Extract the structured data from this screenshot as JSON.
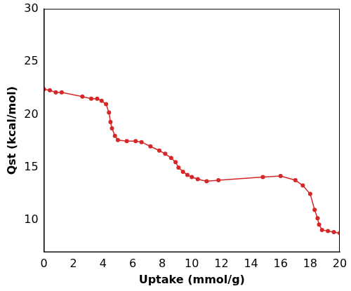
{
  "chart_data": {
    "type": "line",
    "x_label": "Uptake (mmol/g)",
    "y_label": "Qst (kcal/mol)",
    "x": [
      0,
      0.4,
      0.8,
      1.2,
      2.6,
      3.2,
      3.6,
      3.9,
      4.2,
      4.4,
      4.5,
      4.6,
      4.8,
      5.0,
      5.6,
      6.2,
      6.6,
      7.2,
      7.8,
      8.2,
      8.6,
      8.9,
      9.1,
      9.4,
      9.7,
      10.0,
      10.4,
      11.0,
      11.8,
      14.8,
      16.0,
      17.0,
      17.5,
      18.0,
      18.3,
      18.5,
      18.6,
      18.8,
      19.2,
      19.6,
      20.0
    ],
    "values": [
      22.4,
      22.3,
      22.1,
      22.1,
      21.7,
      21.5,
      21.5,
      21.3,
      21.0,
      20.2,
      19.3,
      18.7,
      18.0,
      17.6,
      17.5,
      17.5,
      17.4,
      17.0,
      16.6,
      16.3,
      15.9,
      15.5,
      15.0,
      14.6,
      14.3,
      14.1,
      13.9,
      13.7,
      13.8,
      14.1,
      14.2,
      13.8,
      13.3,
      12.5,
      11.0,
      10.2,
      9.6,
      9.1,
      9.0,
      8.9,
      8.8
    ],
    "color": "#d62728",
    "marker": "circle",
    "line_style": "solid",
    "xlim": [
      0,
      20
    ],
    "xticks": [
      0,
      2,
      4,
      6,
      8,
      10,
      12,
      14,
      16,
      18,
      20
    ],
    "ylim": [
      7,
      30
    ],
    "yticks": [
      10,
      15,
      20,
      25,
      30
    ],
    "grid": false
  }
}
